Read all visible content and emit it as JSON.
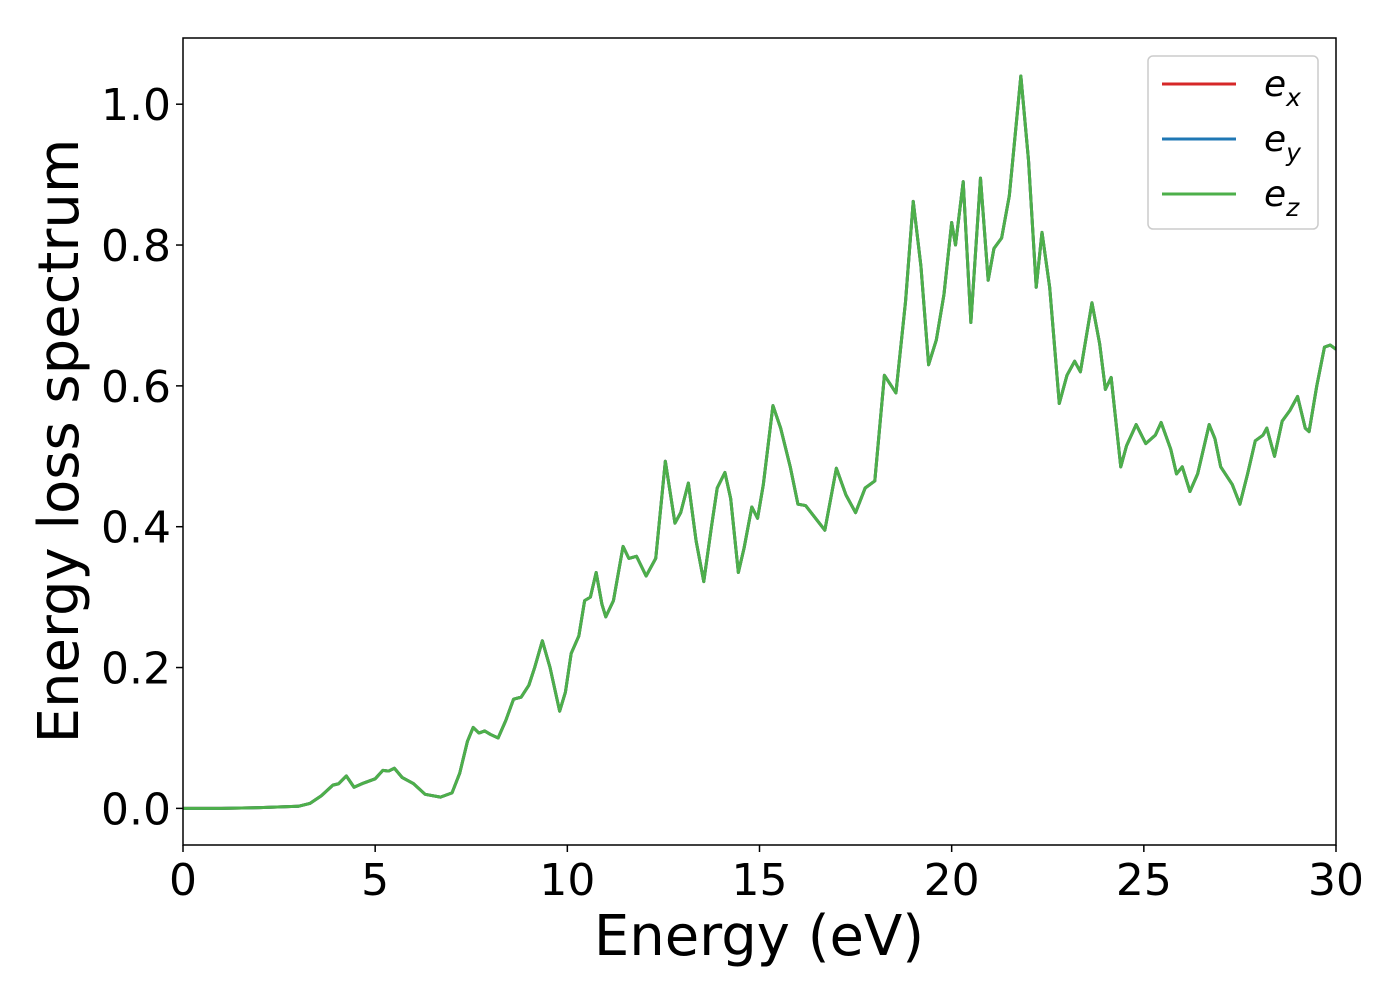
{
  "chart_data": {
    "type": "line",
    "xlabel": "Energy (eV)",
    "ylabel": "Energy loss spectrum",
    "x": [
      0,
      1,
      2,
      3,
      3.3,
      3.6,
      3.9,
      4.05,
      4.25,
      4.45,
      4.7,
      5.0,
      5.2,
      5.35,
      5.5,
      5.7,
      6.0,
      6.3,
      6.7,
      7.0,
      7.2,
      7.4,
      7.55,
      7.7,
      7.85,
      8.0,
      8.2,
      8.4,
      8.6,
      8.8,
      9.0,
      9.15,
      9.35,
      9.55,
      9.8,
      9.95,
      10.1,
      10.3,
      10.45,
      10.6,
      10.75,
      10.9,
      11.0,
      11.2,
      11.45,
      11.6,
      11.8,
      12.05,
      12.3,
      12.55,
      12.8,
      12.95,
      13.15,
      13.35,
      13.55,
      13.75,
      13.9,
      14.1,
      14.25,
      14.45,
      14.6,
      14.8,
      14.95,
      15.1,
      15.35,
      15.55,
      15.8,
      16.0,
      16.2,
      16.7,
      17.0,
      17.25,
      17.5,
      17.75,
      18.0,
      18.25,
      18.55,
      18.8,
      19.0,
      19.2,
      19.4,
      19.6,
      19.8,
      20.0,
      20.1,
      20.3,
      20.5,
      20.75,
      20.95,
      21.1,
      21.3,
      21.5,
      21.8,
      22.0,
      22.2,
      22.35,
      22.55,
      22.8,
      23.0,
      23.2,
      23.35,
      23.65,
      23.85,
      24.0,
      24.15,
      24.4,
      24.55,
      24.8,
      25.05,
      25.3,
      25.45,
      25.7,
      25.85,
      26.0,
      26.2,
      26.4,
      26.7,
      26.85,
      27.0,
      27.3,
      27.5,
      27.7,
      27.9,
      28.1,
      28.2,
      28.4,
      28.6,
      28.8,
      29.0,
      29.2,
      29.3,
      29.5,
      29.7,
      29.85,
      30
    ],
    "series": [
      {
        "name": "e_x",
        "color": "#d62728",
        "values": [
          0,
          0,
          0.001,
          0.003,
          0.007,
          0.018,
          0.033,
          0.035,
          0.046,
          0.03,
          0.036,
          0.042,
          0.054,
          0.053,
          0.057,
          0.044,
          0.035,
          0.02,
          0.016,
          0.022,
          0.05,
          0.095,
          0.115,
          0.107,
          0.11,
          0.105,
          0.1,
          0.125,
          0.155,
          0.158,
          0.175,
          0.2,
          0.238,
          0.2,
          0.138,
          0.165,
          0.22,
          0.245,
          0.295,
          0.3,
          0.335,
          0.29,
          0.272,
          0.295,
          0.372,
          0.355,
          0.358,
          0.33,
          0.355,
          0.493,
          0.405,
          0.42,
          0.462,
          0.38,
          0.322,
          0.4,
          0.455,
          0.477,
          0.44,
          0.335,
          0.37,
          0.428,
          0.412,
          0.46,
          0.572,
          0.54,
          0.485,
          0.432,
          0.43,
          0.395,
          0.483,
          0.445,
          0.42,
          0.455,
          0.465,
          0.615,
          0.59,
          0.72,
          0.862,
          0.77,
          0.63,
          0.665,
          0.73,
          0.832,
          0.8,
          0.89,
          0.69,
          0.895,
          0.75,
          0.795,
          0.81,
          0.87,
          1.04,
          0.92,
          0.74,
          0.818,
          0.74,
          0.575,
          0.615,
          0.635,
          0.62,
          0.718,
          0.66,
          0.595,
          0.612,
          0.485,
          0.515,
          0.545,
          0.518,
          0.53,
          0.548,
          0.51,
          0.475,
          0.485,
          0.45,
          0.475,
          0.545,
          0.525,
          0.485,
          0.46,
          0.432,
          0.475,
          0.522,
          0.53,
          0.54,
          0.5,
          0.55,
          0.565,
          0.585,
          0.54,
          0.535,
          0.6,
          0.655,
          0.658,
          0.652
        ]
      },
      {
        "name": "e_y",
        "color": "#1f77b4",
        "values": [
          0,
          0,
          0.001,
          0.003,
          0.007,
          0.018,
          0.033,
          0.035,
          0.046,
          0.03,
          0.036,
          0.042,
          0.054,
          0.053,
          0.057,
          0.044,
          0.035,
          0.02,
          0.016,
          0.022,
          0.05,
          0.095,
          0.115,
          0.107,
          0.11,
          0.105,
          0.1,
          0.125,
          0.155,
          0.158,
          0.175,
          0.2,
          0.238,
          0.2,
          0.138,
          0.165,
          0.22,
          0.245,
          0.295,
          0.3,
          0.335,
          0.29,
          0.272,
          0.295,
          0.372,
          0.355,
          0.358,
          0.33,
          0.355,
          0.493,
          0.405,
          0.42,
          0.462,
          0.38,
          0.322,
          0.4,
          0.455,
          0.477,
          0.44,
          0.335,
          0.37,
          0.428,
          0.412,
          0.46,
          0.572,
          0.54,
          0.485,
          0.432,
          0.43,
          0.395,
          0.483,
          0.445,
          0.42,
          0.455,
          0.465,
          0.615,
          0.59,
          0.72,
          0.862,
          0.77,
          0.63,
          0.665,
          0.73,
          0.832,
          0.8,
          0.89,
          0.69,
          0.895,
          0.75,
          0.795,
          0.81,
          0.87,
          1.04,
          0.92,
          0.74,
          0.818,
          0.74,
          0.575,
          0.615,
          0.635,
          0.62,
          0.718,
          0.66,
          0.595,
          0.612,
          0.485,
          0.515,
          0.545,
          0.518,
          0.53,
          0.548,
          0.51,
          0.475,
          0.485,
          0.45,
          0.475,
          0.545,
          0.525,
          0.485,
          0.46,
          0.432,
          0.475,
          0.522,
          0.53,
          0.54,
          0.5,
          0.55,
          0.565,
          0.585,
          0.54,
          0.535,
          0.6,
          0.655,
          0.658,
          0.652
        ]
      },
      {
        "name": "e_z",
        "color": "#4daf4a",
        "values": [
          0,
          0,
          0.001,
          0.003,
          0.007,
          0.018,
          0.033,
          0.035,
          0.046,
          0.03,
          0.036,
          0.042,
          0.054,
          0.053,
          0.057,
          0.044,
          0.035,
          0.02,
          0.016,
          0.022,
          0.05,
          0.095,
          0.115,
          0.107,
          0.11,
          0.105,
          0.1,
          0.125,
          0.155,
          0.158,
          0.175,
          0.2,
          0.238,
          0.2,
          0.138,
          0.165,
          0.22,
          0.245,
          0.295,
          0.3,
          0.335,
          0.29,
          0.272,
          0.295,
          0.372,
          0.355,
          0.358,
          0.33,
          0.355,
          0.493,
          0.405,
          0.42,
          0.462,
          0.38,
          0.322,
          0.4,
          0.455,
          0.477,
          0.44,
          0.335,
          0.37,
          0.428,
          0.412,
          0.46,
          0.572,
          0.54,
          0.485,
          0.432,
          0.43,
          0.395,
          0.483,
          0.445,
          0.42,
          0.455,
          0.465,
          0.615,
          0.59,
          0.72,
          0.862,
          0.77,
          0.63,
          0.665,
          0.73,
          0.832,
          0.8,
          0.89,
          0.69,
          0.895,
          0.75,
          0.795,
          0.81,
          0.87,
          1.04,
          0.92,
          0.74,
          0.818,
          0.74,
          0.575,
          0.615,
          0.635,
          0.62,
          0.718,
          0.66,
          0.595,
          0.612,
          0.485,
          0.515,
          0.545,
          0.518,
          0.53,
          0.548,
          0.51,
          0.475,
          0.485,
          0.45,
          0.475,
          0.545,
          0.525,
          0.485,
          0.46,
          0.432,
          0.475,
          0.522,
          0.53,
          0.54,
          0.5,
          0.55,
          0.565,
          0.585,
          0.54,
          0.535,
          0.6,
          0.655,
          0.658,
          0.652
        ]
      }
    ],
    "xlim": [
      0,
      30
    ],
    "xticks": [
      0,
      5,
      10,
      15,
      20,
      25,
      30
    ],
    "ylim": [
      -0.052,
      1.094
    ],
    "yticks": [
      {
        "value": 0,
        "label": "0.0"
      },
      {
        "value": 0.2,
        "label": "0.2"
      },
      {
        "value": 0.4,
        "label": "0.4"
      },
      {
        "value": 0.6,
        "label": "0.6"
      },
      {
        "value": 0.8,
        "label": "0.8"
      },
      {
        "value": 1.0,
        "label": "1.0"
      }
    ],
    "grid": false,
    "legend": "upper right"
  }
}
